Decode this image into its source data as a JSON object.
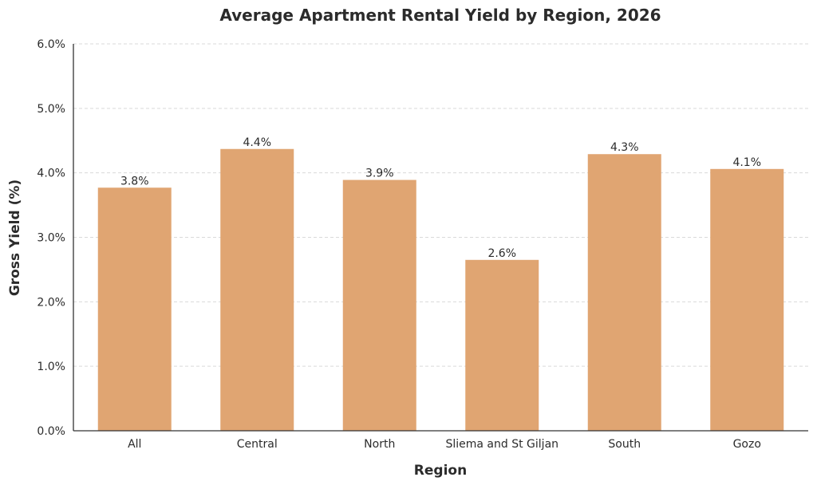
{
  "chart_data": {
    "type": "bar",
    "title": "Average Apartment Rental Yield by Region, 2026",
    "xlabel": "Region",
    "ylabel": "Gross Yield (%)",
    "categories": [
      "All",
      "Central",
      "North",
      "Sliema and St Giljan",
      "South",
      "Gozo"
    ],
    "values": [
      3.77,
      4.37,
      3.89,
      2.65,
      4.29,
      4.06
    ],
    "data_labels": [
      "3.8%",
      "4.4%",
      "3.9%",
      "2.6%",
      "4.3%",
      "4.1%"
    ],
    "ylim": [
      0,
      6
    ],
    "yticks": [
      0,
      1,
      2,
      3,
      4,
      5,
      6
    ],
    "ytick_labels": [
      "0.0%",
      "1.0%",
      "2.0%",
      "3.0%",
      "4.0%",
      "5.0%",
      "6.0%"
    ],
    "grid": "horizontal dashed",
    "bar_color": "#E0A572"
  }
}
